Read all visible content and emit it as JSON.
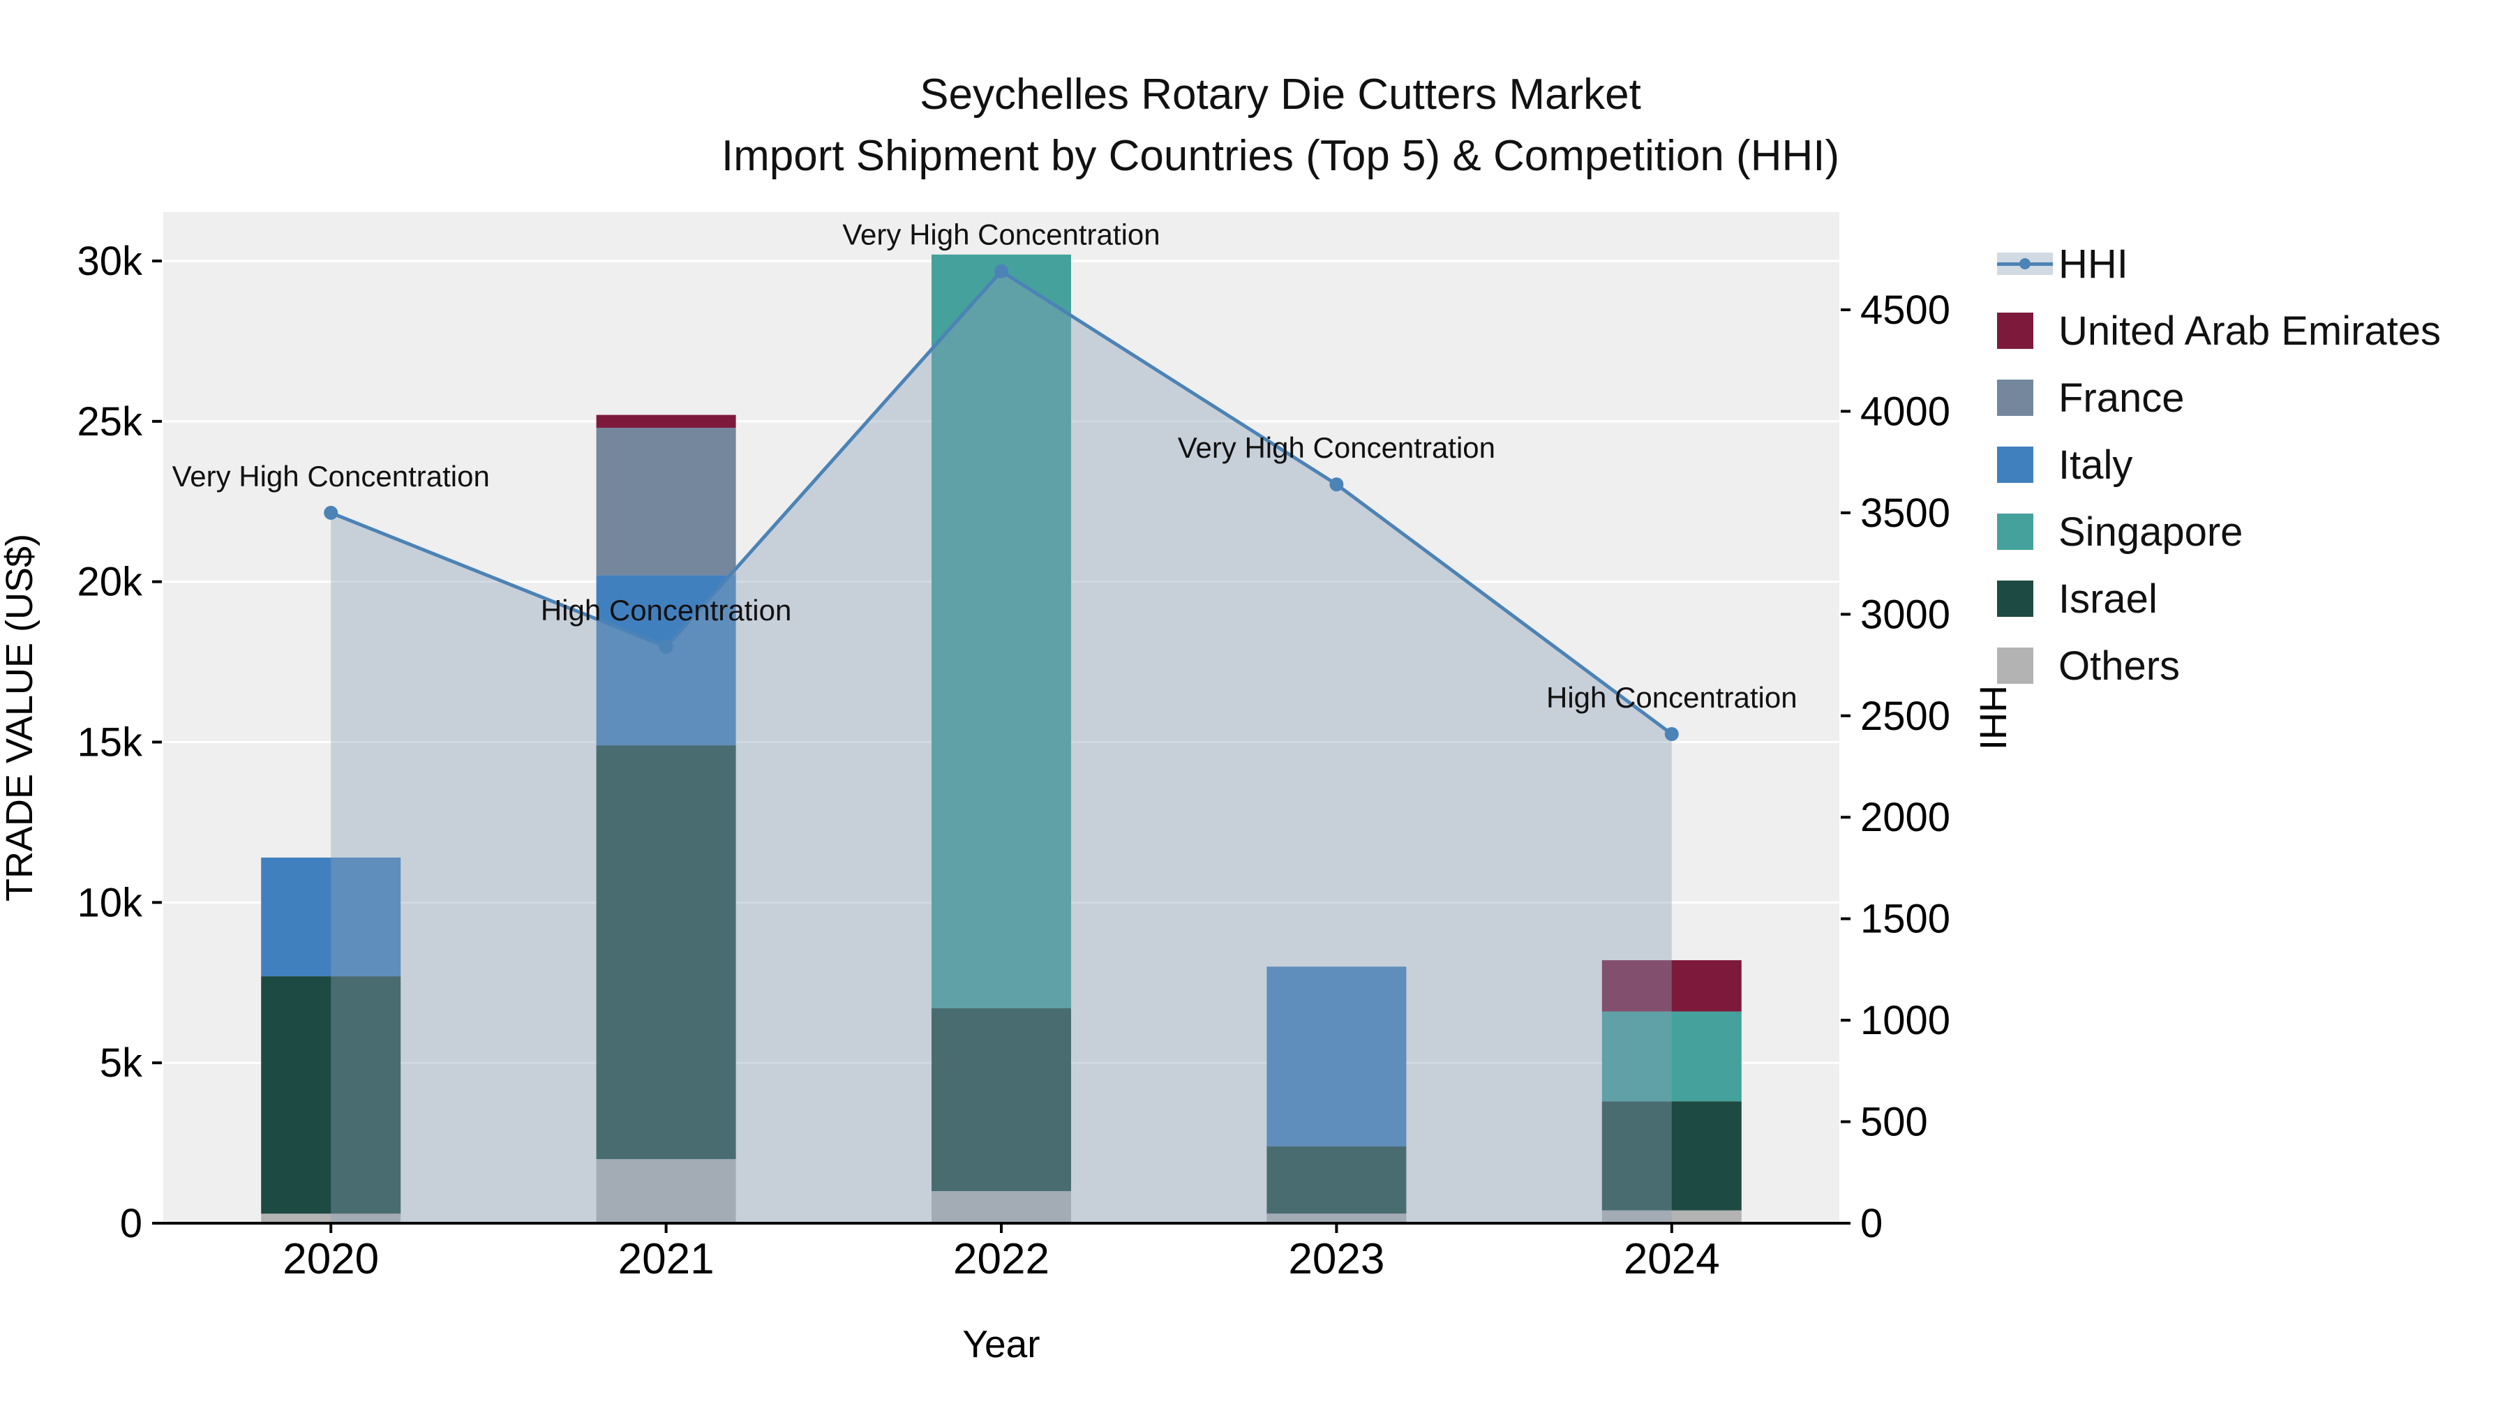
{
  "chart_data": {
    "type": "stacked-bar-with-line",
    "title_line1": "Seychelles Rotary Die Cutters Market",
    "title_line2": "Import Shipment by Countries (Top 5) & Competition (HHI)",
    "xlabel": "Year",
    "ylabel_left": "TRADE VALUE (US$)",
    "ylabel_right": "HHI",
    "categories": [
      "2020",
      "2021",
      "2022",
      "2023",
      "2024"
    ],
    "bar_series": [
      {
        "name": "Others",
        "color": "#b3b3b3",
        "values": [
          300,
          2000,
          1000,
          300,
          400
        ]
      },
      {
        "name": "Israel",
        "color": "#1d4a42",
        "values": [
          7400,
          12900,
          5700,
          2100,
          3400
        ]
      },
      {
        "name": "Singapore",
        "color": "#44a19b",
        "values": [
          0,
          0,
          23500,
          0,
          2800
        ]
      },
      {
        "name": "Italy",
        "color": "#4180bf",
        "values": [
          3700,
          5300,
          0,
          5600,
          0
        ]
      },
      {
        "name": "France",
        "color": "#74879c",
        "values": [
          0,
          4600,
          0,
          0,
          0
        ]
      },
      {
        "name": "United Arab Emirates",
        "color": "#7d1a3c",
        "values": [
          0,
          400,
          0,
          0,
          1600
        ]
      }
    ],
    "line_series": {
      "name": "HHI",
      "color": "#4c83b6",
      "fill": "rgba(140,160,185,0.4)",
      "values": [
        3500,
        2840,
        4690,
        3640,
        2410
      ]
    },
    "hhi_labels": [
      "Very High Concentration",
      "High Concentration",
      "Very High Concentration",
      "Very High Concentration",
      "High Concentration"
    ],
    "left_axis": {
      "min": 0,
      "max": 30000,
      "ticks": [
        "0",
        "5k",
        "10k",
        "15k",
        "20k",
        "25k",
        "30k"
      ],
      "tick_values": [
        0,
        5000,
        10000,
        15000,
        20000,
        25000,
        30000
      ]
    },
    "right_axis": {
      "min": 0,
      "max": 4500,
      "ticks": [
        "0",
        "500",
        "1000",
        "1500",
        "2000",
        "2500",
        "3000",
        "3500",
        "4000",
        "4500"
      ],
      "tick_values": [
        0,
        500,
        1000,
        1500,
        2000,
        2500,
        3000,
        3500,
        4000,
        4500
      ]
    },
    "legend_items": [
      {
        "label": "HHI",
        "type": "line",
        "color": "#4c83b6"
      },
      {
        "label": "United Arab Emirates",
        "type": "swatch",
        "color": "#7d1a3c"
      },
      {
        "label": "France",
        "type": "swatch",
        "color": "#74879c"
      },
      {
        "label": "Italy",
        "type": "swatch",
        "color": "#4180bf"
      },
      {
        "label": "Singapore",
        "type": "swatch",
        "color": "#44a19b"
      },
      {
        "label": "Israel",
        "type": "swatch",
        "color": "#1d4a42"
      },
      {
        "label": "Others",
        "type": "swatch",
        "color": "#b3b3b3"
      }
    ]
  }
}
